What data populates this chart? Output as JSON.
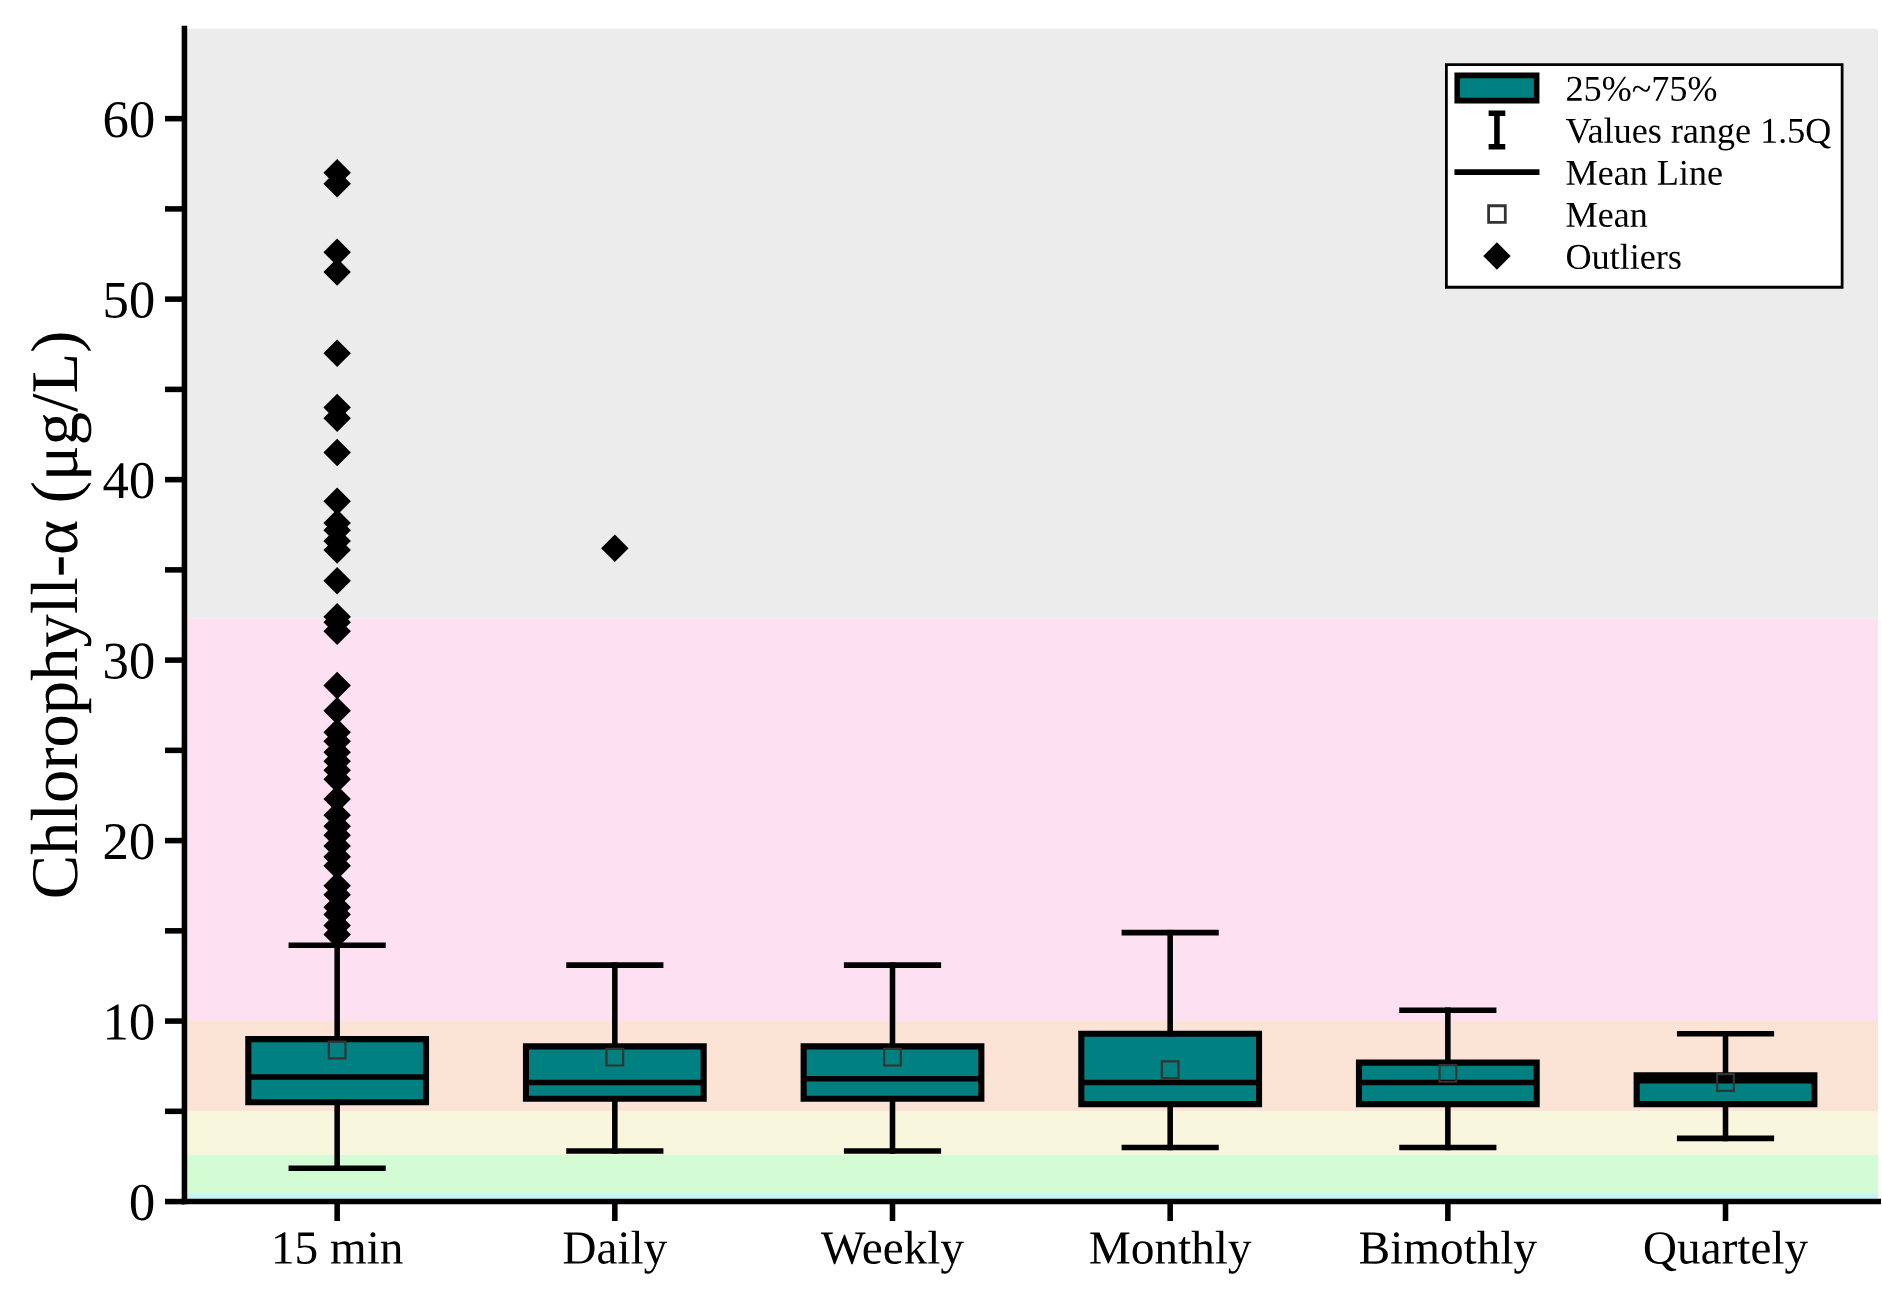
{
  "chart_data": {
    "type": "box",
    "ylabel": "Chlorophyll-α (μg/L)",
    "categories": [
      "15 min",
      "Daily",
      "Weekly",
      "Monthly",
      "Bimothly",
      "Quartely"
    ],
    "color": "#008080",
    "boxes": [
      {
        "low": 1.85,
        "q1": 5.5,
        "median": 6.9,
        "q3": 9.0,
        "high": 14.2,
        "mean": 8.4,
        "outliers": [
          57.0,
          56.4,
          52.6,
          51.5,
          47.0,
          44.0,
          43.4,
          41.5,
          38.8,
          37.6,
          37.2,
          36.6,
          36.1,
          34.4,
          32.4,
          32.1,
          31.6,
          28.6,
          27.2,
          26.0,
          25.5,
          24.9,
          24.4,
          23.9,
          23.4,
          22.3,
          21.4,
          20.8,
          20.3,
          19.7,
          19.1,
          18.6,
          17.5,
          17.0,
          16.3,
          15.9,
          15.3,
          14.8
        ]
      },
      {
        "low": 2.8,
        "q1": 5.7,
        "median": 6.6,
        "q3": 8.6,
        "high": 13.1,
        "mean": 8.0,
        "outliers": [
          36.2
        ]
      },
      {
        "low": 2.8,
        "q1": 5.7,
        "median": 6.8,
        "q3": 8.6,
        "high": 13.1,
        "mean": 8.0
      },
      {
        "low": 3.0,
        "q1": 5.4,
        "median": 6.6,
        "q3": 9.3,
        "high": 14.9,
        "mean": 7.3
      },
      {
        "low": 3.0,
        "q1": 5.4,
        "median": 6.6,
        "q3": 7.7,
        "high": 10.6,
        "mean": 7.1
      },
      {
        "low": 3.5,
        "q1": 5.4,
        "median": 6.7,
        "q3": 7.0,
        "high": 9.3,
        "mean": 6.6
      }
    ],
    "ylim": [
      0,
      65
    ],
    "yticks": [
      0,
      {
        "value": 5,
        "label": null
      },
      10,
      {
        "value": 15,
        "label": null
      },
      20,
      {
        "value": 25,
        "label": null
      },
      30,
      {
        "value": 35,
        "label": null
      },
      40,
      {
        "value": 45,
        "label": null
      },
      50,
      {
        "value": 55,
        "label": null
      },
      60
    ],
    "bands": [
      {
        "axis": "y",
        "from": 32.3,
        "to": 65,
        "label": null,
        "color": "#ececec"
      },
      {
        "axis": "y",
        "from": 10,
        "to": 32.3,
        "label": null,
        "color": "#fde0f1"
      },
      {
        "axis": "y",
        "from": 5,
        "to": 10,
        "label": null,
        "color": "#fbe3d5"
      },
      {
        "axis": "y",
        "from": 2.6,
        "to": 5,
        "label": null,
        "color": "#f8f6dc"
      },
      {
        "axis": "y",
        "from": 0.45,
        "to": 2.6,
        "label": null,
        "color": "#d4fcd4"
      },
      {
        "axis": "y",
        "from": 0,
        "to": 0.45,
        "label": null,
        "color": "#c4f4f6"
      }
    ],
    "annotations": [
      "25%~75%",
      "Values range 1.5Q",
      "Mean Line",
      "Mean",
      "Outliers"
    ],
    "marker": "diamond",
    "grid": false
  }
}
